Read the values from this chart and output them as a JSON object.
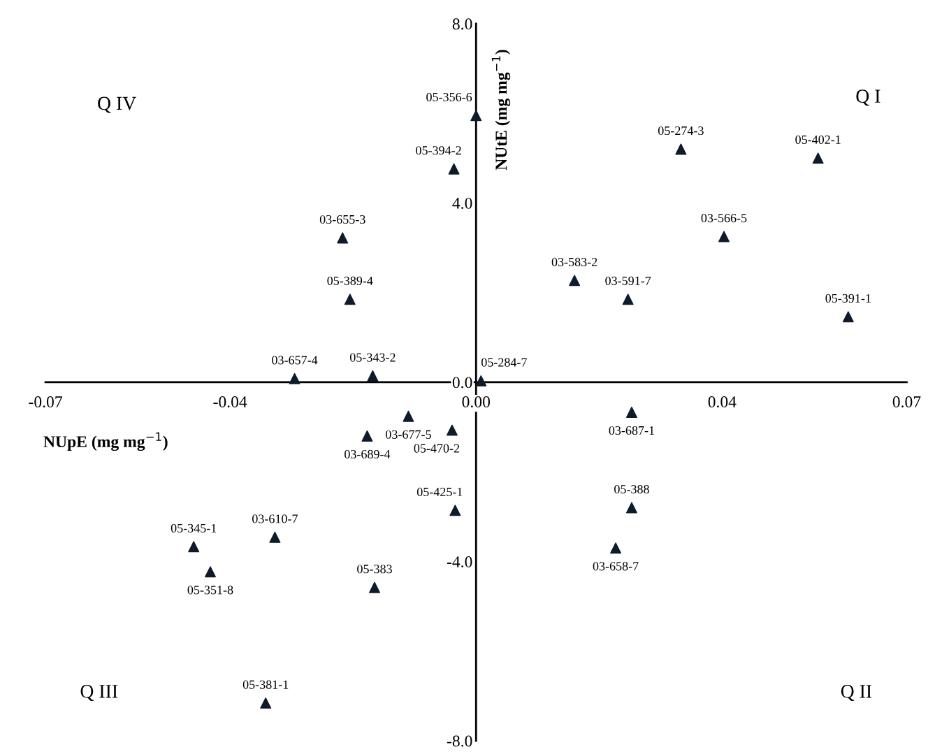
{
  "chart_data": {
    "type": "scatter",
    "xlabel": "NUpE (mg mg$^{−1}$)",
    "ylabel": "NUtE (mg mg$^{−1}$)",
    "x": [
      0.0,
      -0.0036,
      0.0333,
      0.0556,
      -0.0217,
      0.0403,
      0.016,
      0.0247,
      -0.0205,
      0.0605,
      -0.0295,
      -0.0168,
      0.0008,
      -0.011,
      0.0253,
      -0.0177,
      -0.0039,
      -0.0034,
      0.0253,
      -0.0459,
      -0.0327,
      0.0227,
      -0.0432,
      -0.0165,
      -0.0342
    ],
    "series": [
      {
        "color": "#0d1b2a",
        "values": [
          5.95,
          4.76,
          5.2,
          5.0,
          3.22,
          3.25,
          2.27,
          1.85,
          1.85,
          1.46,
          0.08,
          0.14,
          0.03,
          -0.76,
          -0.67,
          -1.2,
          -1.07,
          -2.86,
          -2.8,
          -3.67,
          -3.46,
          -3.7,
          -4.23,
          -4.58,
          -7.16
        ]
      }
    ],
    "marker": "triangle",
    "grid": false,
    "xlim": [
      -0.07,
      0.07
    ],
    "ylim": [
      -8.0,
      8.0
    ],
    "xticks": [
      {
        "value": -0.07,
        "label": "-0.07"
      },
      {
        "value": -0.04,
        "label": "-0.04"
      },
      {
        "value": 0.0,
        "label": "0.00"
      },
      {
        "value": 0.04,
        "label": "0.04"
      },
      {
        "value": 0.07,
        "label": "0.07"
      }
    ],
    "yticks": [
      {
        "value": 8.0,
        "label": "8.0"
      },
      {
        "value": 4.0,
        "label": "4.0"
      },
      {
        "value": 0.0,
        "label": "0.0"
      },
      {
        "value": -4.0,
        "label": "-4.0"
      },
      {
        "value": -8.0,
        "label": "-8.0"
      }
    ],
    "annotations": [
      "Q IV",
      "Q I",
      "Q III",
      "Q II",
      {
        "text": "05-356-6",
        "x": 0.0,
        "y": 5.95
      },
      {
        "text": "05-394-2",
        "x": -0.0036,
        "y": 4.76
      },
      {
        "text": "05-274-3",
        "x": 0.0333,
        "y": 5.2
      },
      {
        "text": "05-402-1",
        "x": 0.0556,
        "y": 5.0
      },
      {
        "text": "03-655-3",
        "x": -0.0217,
        "y": 3.22
      },
      {
        "text": "03-566-5",
        "x": 0.0403,
        "y": 3.25
      },
      {
        "text": "03-583-2",
        "x": 0.016,
        "y": 2.27
      },
      {
        "text": "03-591-7",
        "x": 0.0247,
        "y": 1.85
      },
      {
        "text": "05-389-4",
        "x": -0.0205,
        "y": 1.85
      },
      {
        "text": "05-391-1",
        "x": 0.0605,
        "y": 1.46
      },
      {
        "text": "03-657-4",
        "x": -0.0295,
        "y": 0.08
      },
      {
        "text": "05-343-2",
        "x": -0.0168,
        "y": 0.14
      },
      {
        "text": "05-284-7",
        "x": 0.0008,
        "y": 0.03
      },
      {
        "text": "03-677-5",
        "x": -0.011,
        "y": -0.76
      },
      {
        "text": "03-687-1",
        "x": 0.0253,
        "y": -0.67
      },
      {
        "text": "03-689-4",
        "x": -0.0177,
        "y": -1.2
      },
      {
        "text": "05-470-2",
        "x": -0.0039,
        "y": -1.07
      },
      {
        "text": "05-425-1",
        "x": -0.0034,
        "y": -2.86
      },
      {
        "text": "05-388",
        "x": 0.0253,
        "y": -2.8
      },
      {
        "text": "05-345-1",
        "x": -0.0459,
        "y": -3.67
      },
      {
        "text": "03-610-7",
        "x": -0.0327,
        "y": -3.46
      },
      {
        "text": "03-658-7",
        "x": 0.0227,
        "y": -3.7
      },
      {
        "text": "05-351-8",
        "x": -0.0432,
        "y": -4.23
      },
      {
        "text": "05-383",
        "x": -0.0165,
        "y": -4.58
      },
      {
        "text": "05-381-1",
        "x": -0.0342,
        "y": -7.16
      }
    ]
  }
}
